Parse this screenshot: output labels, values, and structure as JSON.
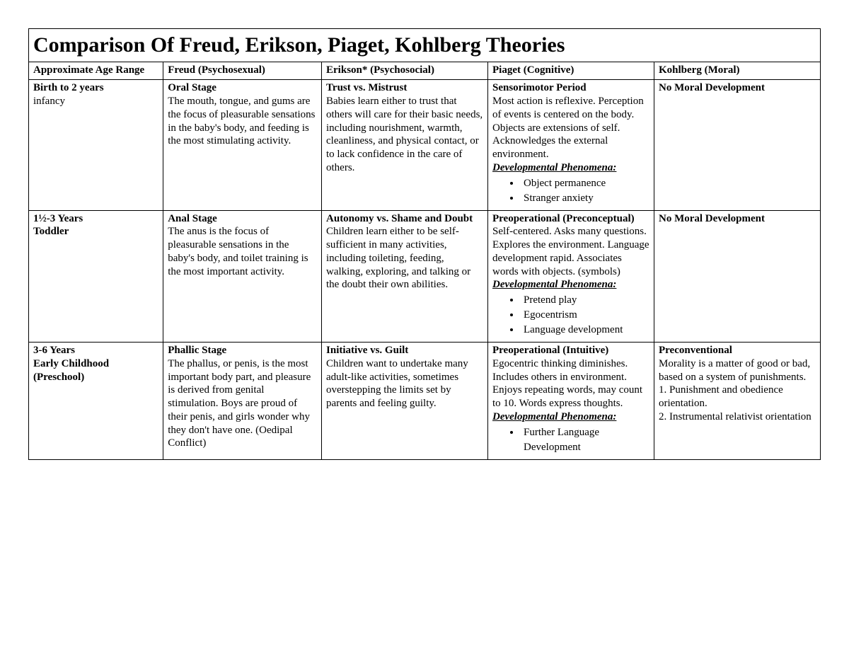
{
  "title": "Comparison Of Freud, Erikson, Piaget, Kohlberg Theories",
  "headers": {
    "age": "Approximate Age Range",
    "freud": "Freud (Psychosexual)",
    "erikson": "Erikson* (Psychosocial)",
    "piaget": "Piaget (Cognitive)",
    "kohlberg": "Kohlberg (Moral)"
  },
  "rows": [
    {
      "age": {
        "line1": "Birth to 2 years",
        "line2_bold": false,
        "line2": "infancy"
      },
      "freud": {
        "title": "Oral Stage",
        "body": "The mouth, tongue, and gums are the focus of pleasurable sensations in the baby's body, and feeding is the most stimulating activity."
      },
      "erikson": {
        "title": "Trust vs. Mistrust",
        "body": "Babies learn either to trust that others will care for their basic needs, including nourishment, warmth, cleanliness, and physical contact, or to lack confidence in the care of others."
      },
      "piaget": {
        "title": "Sensorimotor Period",
        "body": "Most action is reflexive. Perception of events is centered on the body. Objects are extensions of self. Acknowledges the external environment.",
        "phenomena_label": "Developmental Phenomena:",
        "phenomena": [
          "Object permanence",
          "Stranger anxiety"
        ]
      },
      "kohlberg": {
        "title": "No Moral Development",
        "body": ""
      }
    },
    {
      "age": {
        "line1": "1½-3 Years",
        "line2_bold": true,
        "line2": "Toddler"
      },
      "freud": {
        "title": "Anal Stage",
        "body": "The anus is the focus of pleasurable sensations in the baby's body, and toilet training is the most important activity."
      },
      "erikson": {
        "title": "Autonomy vs. Shame and Doubt",
        "body": "Children learn either to be self-sufficient in many activities, including toileting, feeding, walking, exploring, and talking or the doubt their own abilities."
      },
      "piaget": {
        "title": "Preoperational (Preconceptual)",
        "body": "Self-centered. Asks many questions. Explores the environment. Language development rapid. Associates words with objects. (symbols)",
        "phenomena_label": "Developmental Phenomena:",
        "phenomena": [
          "Pretend play",
          "Egocentrism",
          "Language development"
        ]
      },
      "kohlberg": {
        "title": "No Moral Development",
        "body": ""
      }
    },
    {
      "age": {
        "line1": "3-6 Years",
        "line2_bold": true,
        "line2": "Early Childhood (Preschool)"
      },
      "freud": {
        "title": "Phallic Stage",
        "body": "The phallus, or penis, is the most important body part, and pleasure is derived from genital stimulation. Boys are proud of their penis, and girls wonder why they don't have one. (Oedipal Conflict)"
      },
      "erikson": {
        "title": "Initiative vs. Guilt",
        "body": "Children want to undertake many adult-like activities, sometimes overstepping the limits set by parents and feeling guilty."
      },
      "piaget": {
        "title": "Preoperational (Intuitive)",
        "body": "Egocentric thinking diminishes. Includes others in environment. Enjoys repeating words, may count to 10. Words express thoughts.",
        "phenomena_label": "Developmental Phenomena:",
        "phenomena": [
          "Further Language Development"
        ]
      },
      "kohlberg": {
        "title": "Preconventional",
        "body": "Morality is a matter of good or bad, based on a system of punishments.\n1. Punishment and obedience orientation.\n2. Instrumental relativist orientation"
      }
    }
  ]
}
